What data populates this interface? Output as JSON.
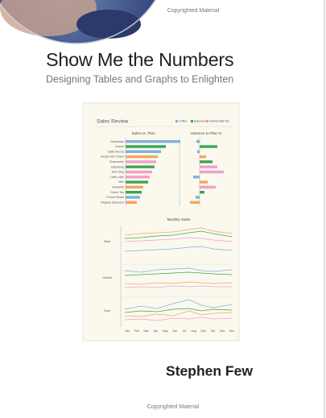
{
  "header_note": "Copyrighted Material",
  "title": "Show Me the Numbers",
  "subtitle": "Designing Tables and Graphs to Enlighten",
  "cover_chart": {
    "title": "Sales Review",
    "legend": [
      "Coffee",
      "Espresso",
      "Herbal Tea",
      "Tea"
    ],
    "panels": [
      "Sales vs. Plan",
      "Variance to Plan %",
      "Monthly Sales"
    ],
    "products": [
      "Colombian",
      "Lemon",
      "Caffe Mocha",
      "Decaf Irish Cream",
      "Chamomile",
      "Darjeeling",
      "Earl Grey",
      "Caffe Latte",
      "Mint",
      "Amaretto",
      "Green Tea",
      "French Roast",
      "Regular Espresso"
    ],
    "regions": [
      "West",
      "Central",
      "East"
    ],
    "months": [
      "Jan",
      "Feb",
      "Mar",
      "Apr",
      "May",
      "Jun",
      "Jul",
      "Aug",
      "Sep",
      "Oct",
      "Nov",
      "Dec"
    ]
  },
  "author": "Stephen Few",
  "footer_note": "Copyrighted Material"
}
